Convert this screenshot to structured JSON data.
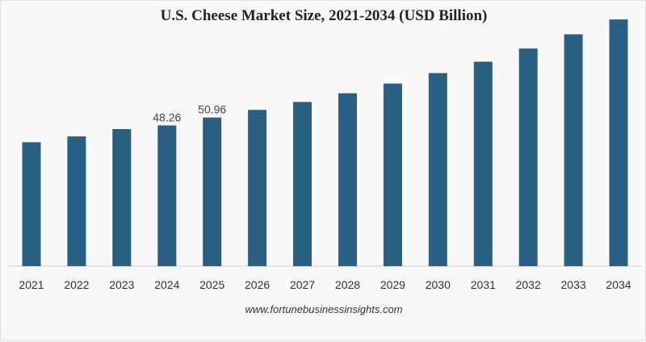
{
  "chart_data": {
    "type": "bar",
    "title": "U.S. Cheese Market Size, 2021-2034 (USD Billion)",
    "xlabel": "",
    "ylabel": "",
    "categories": [
      "2021",
      "2022",
      "2023",
      "2024",
      "2025",
      "2026",
      "2027",
      "2028",
      "2029",
      "2030",
      "2031",
      "2032",
      "2033",
      "2034"
    ],
    "values": [
      42.5,
      44.5,
      47.0,
      48.26,
      50.96,
      53.6,
      56.3,
      59.3,
      62.6,
      66.2,
      70.1,
      74.6,
      79.5,
      84.6
    ],
    "data_labels": [
      "",
      "",
      "",
      "48.26",
      "50.96",
      "",
      "",
      "",
      "",
      "",
      "",
      "",
      "",
      ""
    ],
    "ylim": [
      0,
      86
    ],
    "grid": false,
    "legend": "none",
    "bar_color": "#2a5f84",
    "axis_color": "#cfcfcf"
  },
  "footer": {
    "source": "www.fortunebusinessinsights.com"
  }
}
